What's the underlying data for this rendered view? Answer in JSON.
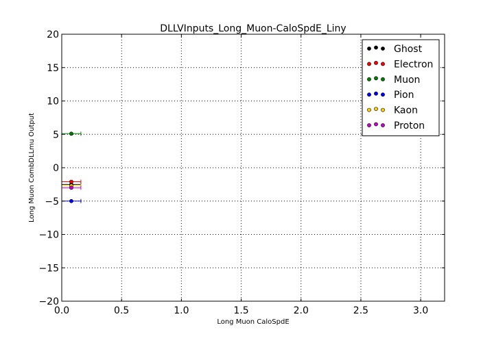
{
  "chart_data": {
    "type": "scatter",
    "title": "DLLVInputs_Long_Muon-CaloSpdE_Liny",
    "xlabel": "Long Muon CaloSpdE",
    "ylabel": "Long Muon CombDLLmu Output",
    "xlim": [
      0,
      3.2
    ],
    "ylim": [
      -20,
      20
    ],
    "xticks": [
      0.0,
      0.5,
      1.0,
      1.5,
      2.0,
      2.5,
      3.0
    ],
    "xtick_labels": [
      "0.0",
      "0.5",
      "1.0",
      "1.5",
      "2.0",
      "2.5",
      "3.0"
    ],
    "yticks": [
      -20,
      -15,
      -10,
      -5,
      0,
      5,
      10,
      15,
      20
    ],
    "ytick_labels": [
      "−20",
      "−15",
      "−10",
      "−5",
      "0",
      "5",
      "10",
      "15",
      "20"
    ],
    "grid": true,
    "legend_position": "top-right",
    "series": [
      {
        "name": "Ghost",
        "color": "#000000",
        "x": [
          0.08
        ],
        "y": [
          -2.5
        ],
        "xerr": [
          0.08
        ]
      },
      {
        "name": "Electron",
        "color": "#ff0000",
        "x": [
          0.08
        ],
        "y": [
          -2.1
        ],
        "xerr": [
          0.08
        ]
      },
      {
        "name": "Muon",
        "color": "#008000",
        "x": [
          0.08
        ],
        "y": [
          5.1
        ],
        "xerr": [
          0.08
        ]
      },
      {
        "name": "Pion",
        "color": "#0000ff",
        "x": [
          0.08
        ],
        "y": [
          -5.0
        ],
        "xerr": [
          0.08
        ]
      },
      {
        "name": "Kaon",
        "color": "#ffcc00",
        "x": [
          0.08
        ],
        "y": [
          -2.7
        ],
        "xerr": [
          0.08
        ]
      },
      {
        "name": "Proton",
        "color": "#cc00cc",
        "x": [
          0.08
        ],
        "y": [
          -3.0
        ],
        "xerr": [
          0.08
        ]
      }
    ]
  }
}
